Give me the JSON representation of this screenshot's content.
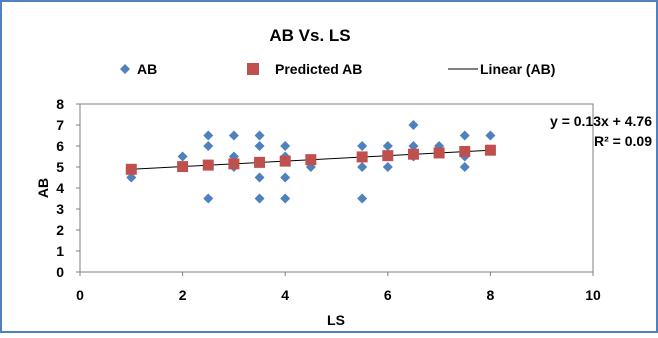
{
  "chart_data": {
    "type": "scatter",
    "title": "AB Vs. LS",
    "xlabel": "LS",
    "ylabel": "AB",
    "xlim": [
      0,
      10
    ],
    "ylim": [
      0,
      8
    ],
    "xticks": [
      0,
      2,
      4,
      6,
      8,
      10
    ],
    "yticks": [
      0,
      1,
      2,
      3,
      4,
      5,
      6,
      7,
      8
    ],
    "grid": false,
    "legend_position": "top",
    "series": [
      {
        "name": "AB",
        "marker": "diamond",
        "color": "#4f81bd",
        "points": [
          [
            1,
            4.5
          ],
          [
            2,
            5.5
          ],
          [
            2.5,
            6.5
          ],
          [
            2.5,
            6
          ],
          [
            2.5,
            3.5
          ],
          [
            3,
            6.5
          ],
          [
            3,
            5.5
          ],
          [
            3,
            5
          ],
          [
            3.5,
            6.5
          ],
          [
            3.5,
            6
          ],
          [
            3.5,
            4.5
          ],
          [
            3.5,
            3.5
          ],
          [
            4,
            6
          ],
          [
            4,
            5.5
          ],
          [
            4,
            4.5
          ],
          [
            4,
            3.5
          ],
          [
            4.5,
            5
          ],
          [
            5.5,
            6
          ],
          [
            5.5,
            5
          ],
          [
            5.5,
            3.5
          ],
          [
            6,
            6
          ],
          [
            6,
            5
          ],
          [
            6.5,
            7
          ],
          [
            6.5,
            6
          ],
          [
            6.5,
            5.5
          ],
          [
            7,
            6
          ],
          [
            7.5,
            6.5
          ],
          [
            7.5,
            5.5
          ],
          [
            7.5,
            5
          ],
          [
            8,
            6.5
          ]
        ]
      },
      {
        "name": "Predicted AB",
        "marker": "square",
        "color": "#c0504d",
        "points": [
          [
            1,
            4.89
          ],
          [
            2,
            5.02
          ],
          [
            2.5,
            5.09
          ],
          [
            3,
            5.15
          ],
          [
            3.5,
            5.22
          ],
          [
            4,
            5.28
          ],
          [
            4.5,
            5.35
          ],
          [
            5.5,
            5.48
          ],
          [
            6,
            5.54
          ],
          [
            6.5,
            5.61
          ],
          [
            7,
            5.67
          ],
          [
            7.5,
            5.74
          ],
          [
            8,
            5.8
          ]
        ]
      },
      {
        "name": "Linear (AB)",
        "marker": "line",
        "color": "#000000",
        "slope": 0.13,
        "intercept": 4.76,
        "x_range": [
          1,
          8
        ]
      }
    ],
    "annotations": {
      "equation": "y = 0.13x + 4.76",
      "r_squared": "R² = 0.09"
    }
  },
  "colors": {
    "frame_border": "#4f81bd",
    "plot_border": "#7f7f7f",
    "background": "#ffffff"
  }
}
